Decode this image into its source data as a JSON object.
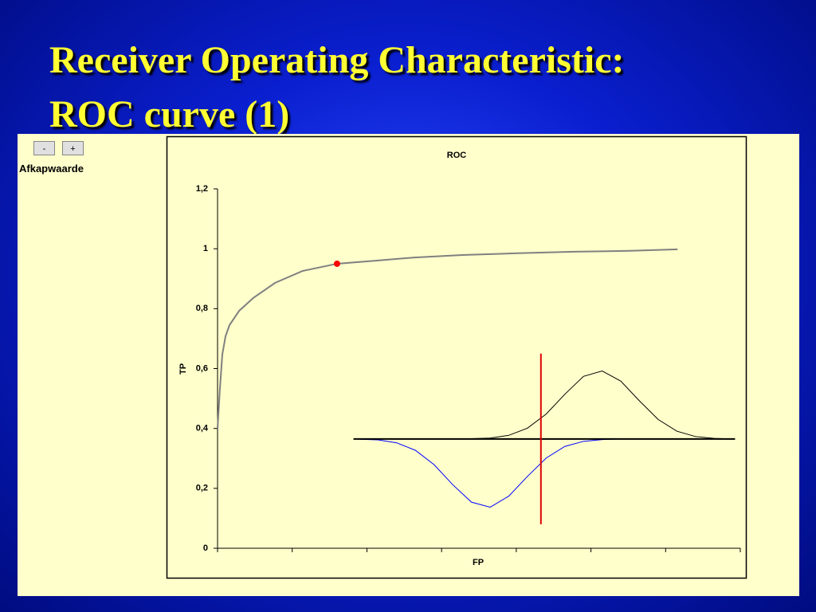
{
  "slide": {
    "title_lines": [
      "Receiver Operating Characteristic:",
      "ROC curve (1)"
    ]
  },
  "controls": {
    "minus": "-",
    "plus": "+",
    "label": "Afkapwaarde"
  },
  "chart_data": {
    "type": "line",
    "title": "ROC",
    "x_label": "FP",
    "y_label": "TP",
    "xlim": [
      0,
      7
    ],
    "xticks": [
      0,
      1,
      2,
      3,
      4,
      5,
      6,
      7
    ],
    "ylim": [
      0,
      1.2
    ],
    "yticks": [
      0,
      {
        "value": 0.2,
        "label": "0,2"
      },
      {
        "value": 0.4,
        "label": "0,4"
      },
      {
        "value": 0.6,
        "label": "0,6"
      },
      {
        "value": 0.8,
        "label": "0,8"
      },
      1,
      {
        "value": 1.2,
        "label": "1,2"
      }
    ],
    "series": [
      {
        "color": "#808080",
        "width": 2,
        "x": [
          0,
          0.03,
          0.064,
          0.107,
          0.16,
          0.29,
          0.48,
          0.77,
          1.14,
          1.6,
          2.1,
          2.64,
          3.28,
          4.02,
          4.77,
          5.52,
          6.16
        ],
        "values": [
          0.4,
          0.527,
          0.647,
          0.708,
          0.745,
          0.793,
          0.836,
          0.886,
          0.926,
          0.95,
          0.96,
          0.971,
          0.979,
          0.985,
          0.99,
          0.993,
          0.998
        ]
      },
      {
        "color": "#ff0000",
        "marker": true,
        "x": [
          1.6
        ],
        "values": [
          0.95
        ]
      },
      {
        "color": "#0000ff",
        "width": 1,
        "x": [
          1.9,
          2.15,
          2.4,
          2.65,
          2.9,
          3.15,
          3.4,
          3.65,
          3.9,
          4.15,
          4.4,
          4.65,
          4.9,
          5.15,
          5.4,
          5.65,
          5.9,
          6.15
        ],
        "values": [
          0.364,
          0.362,
          0.352,
          0.327,
          0.279,
          0.212,
          0.154,
          0.137,
          0.174,
          0.24,
          0.301,
          0.34,
          0.357,
          0.363,
          0.365,
          0.365,
          0.365,
          0.365
        ]
      },
      {
        "color": "#000000",
        "width": 1,
        "x": [
          1.9,
          2.15,
          2.4,
          2.65,
          2.9,
          3.15,
          3.4,
          3.65,
          3.9,
          4.15,
          4.4,
          4.65,
          4.9,
          5.15,
          5.4,
          5.65,
          5.9,
          6.15,
          6.4,
          6.65,
          6.9
        ],
        "values": [
          0.365,
          0.365,
          0.365,
          0.365,
          0.365,
          0.365,
          0.366,
          0.368,
          0.377,
          0.401,
          0.448,
          0.514,
          0.574,
          0.592,
          0.558,
          0.492,
          0.43,
          0.391,
          0.373,
          0.367,
          0.365
        ]
      },
      {
        "color": "#000000",
        "width": 2,
        "x": [
          1.82,
          6.93
        ],
        "values": [
          0.365,
          0.365
        ]
      },
      {
        "color": "#dd0000",
        "width": 2,
        "x": [
          4.33,
          4.33
        ],
        "values": [
          0.65,
          0.08
        ]
      }
    ]
  }
}
